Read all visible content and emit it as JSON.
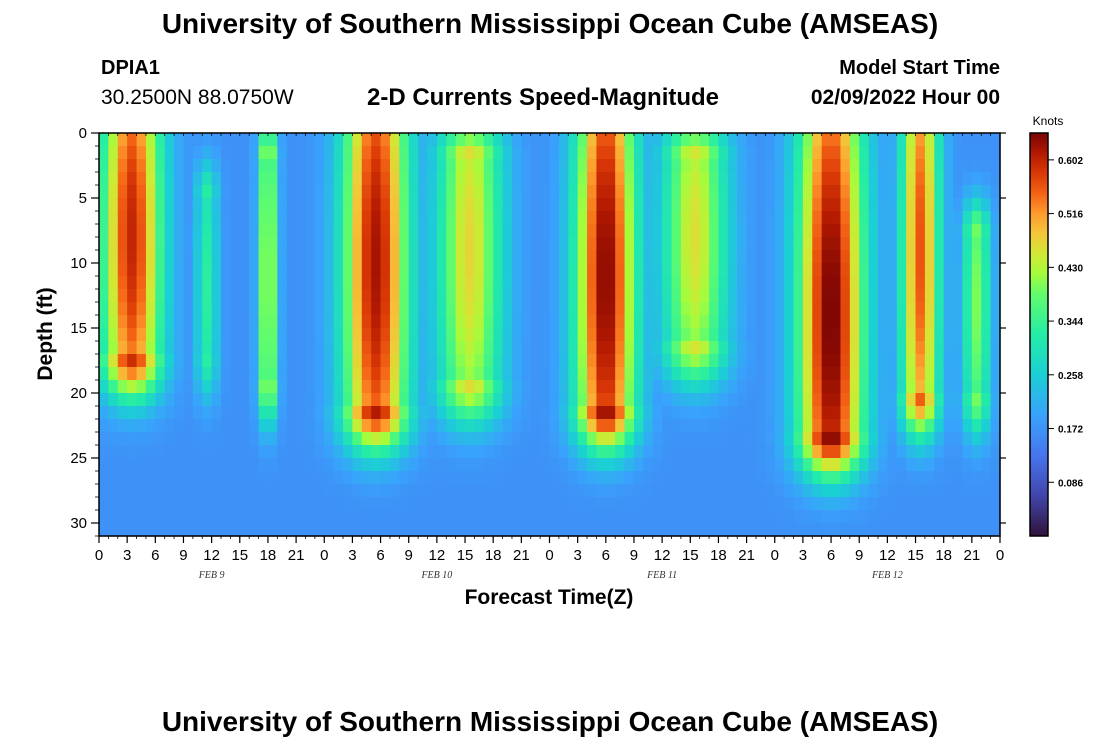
{
  "header": {
    "title": "University of Southern Mississippi Ocean Cube (AMSEAS)",
    "station_id": "DPIA1",
    "station_coords": "30.2500N  88.0750W",
    "subtitle": "2-D Currents Speed-Magnitude",
    "model_start_label": "Model Start Time",
    "model_start_value": "02/09/2022 Hour 00"
  },
  "footer": {
    "title": "University of Southern Mississippi Ocean Cube (AMSEAS)"
  },
  "chart_data": {
    "type": "heatmap",
    "title": "2-D Currents Speed-Magnitude",
    "xlabel": "Forecast Time(Z)",
    "ylabel": "Depth (ft)",
    "x_range_hours": [
      0,
      96
    ],
    "ylim": [
      0,
      31
    ],
    "x_tick_labels": [
      "0",
      "3",
      "6",
      "9",
      "12",
      "15",
      "18",
      "21",
      "0",
      "3",
      "6",
      "9",
      "12",
      "15",
      "18",
      "21",
      "0",
      "3",
      "6",
      "9",
      "12",
      "15",
      "18",
      "21",
      "0",
      "3",
      "6",
      "9",
      "12",
      "15",
      "18",
      "21",
      "0"
    ],
    "y_ticks": [
      0,
      5,
      10,
      15,
      20,
      25,
      30
    ],
    "date_labels": [
      {
        "label": "FEB 9",
        "hour": 12
      },
      {
        "label": "FEB 10",
        "hour": 36
      },
      {
        "label": "FEB 11",
        "hour": 60
      },
      {
        "label": "FEB 12",
        "hour": 84
      }
    ],
    "colorbar": {
      "label": "Knots",
      "min": 0.0,
      "max": 0.645,
      "ticks": [
        0.086,
        0.172,
        0.258,
        0.344,
        0.43,
        0.516,
        0.602
      ]
    },
    "features": [
      {
        "hour": 3.5,
        "width": 3.2,
        "peak": 0.6,
        "top": 0,
        "bottom": 17,
        "center": 8
      },
      {
        "hour": 11.5,
        "width": 1.2,
        "peak": 0.33,
        "top": 5,
        "bottom": 17,
        "center": 12
      },
      {
        "hour": 18,
        "width": 1.0,
        "peak": 0.46,
        "top": 2,
        "bottom": 19,
        "center": 11
      },
      {
        "hour": 29.5,
        "width": 3.5,
        "peak": 0.62,
        "top": 0,
        "bottom": 21,
        "center": 10
      },
      {
        "hour": 39.5,
        "width": 3.5,
        "peak": 0.47,
        "top": 2,
        "bottom": 19,
        "center": 9
      },
      {
        "hour": 54,
        "width": 3.2,
        "peak": 0.64,
        "top": 0,
        "bottom": 21,
        "center": 11
      },
      {
        "hour": 63.5,
        "width": 3.5,
        "peak": 0.46,
        "top": 2,
        "bottom": 16,
        "center": 8
      },
      {
        "hour": 78,
        "width": 3.5,
        "peak": 0.65,
        "top": 0,
        "bottom": 23,
        "center": 14
      },
      {
        "hour": 87.5,
        "width": 2.0,
        "peak": 0.56,
        "top": 0,
        "bottom": 20,
        "center": 9
      },
      {
        "hour": 93.5,
        "width": 1.5,
        "peak": 0.4,
        "top": 8,
        "bottom": 20,
        "center": 13
      }
    ],
    "background_level": 0.17,
    "deep_minima_hours": [
      15,
      24,
      57,
      87
    ]
  }
}
